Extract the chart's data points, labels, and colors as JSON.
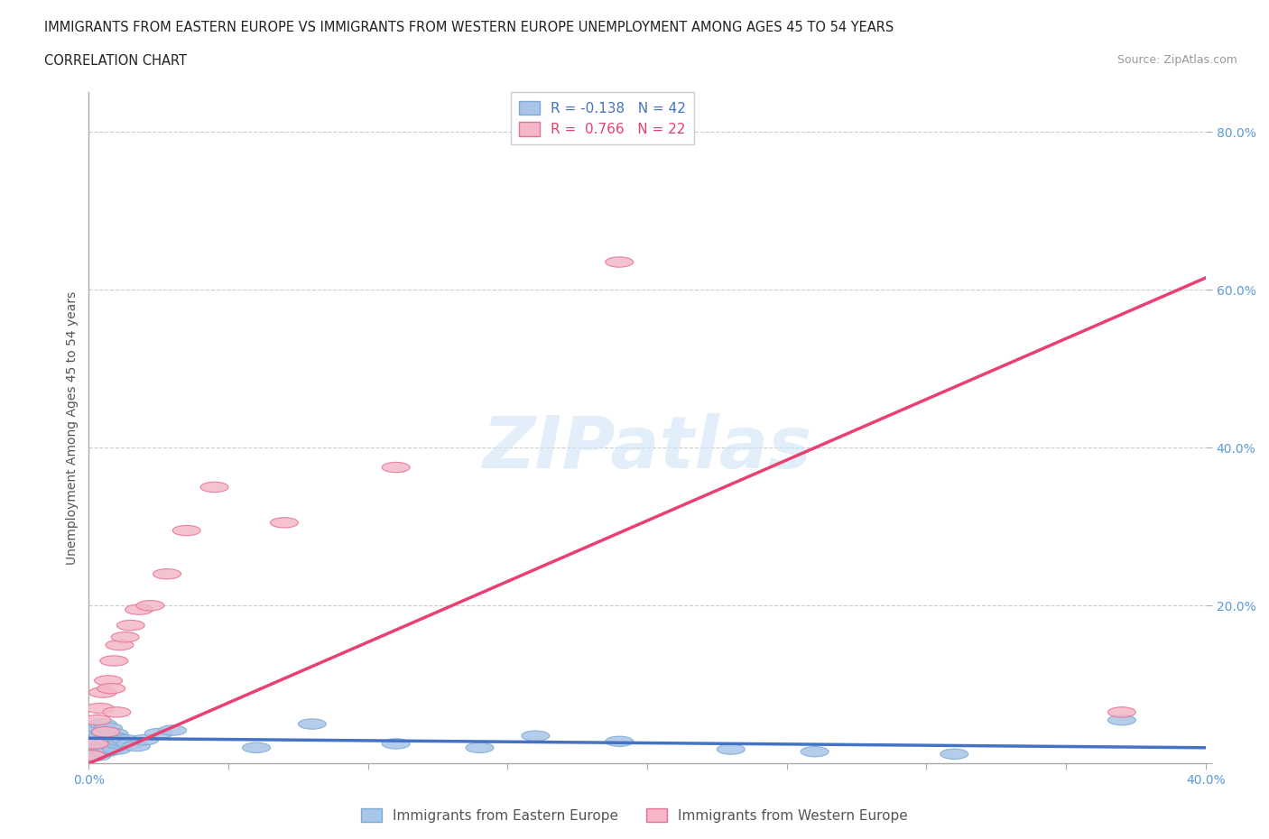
{
  "title_line1": "IMMIGRANTS FROM EASTERN EUROPE VS IMMIGRANTS FROM WESTERN EUROPE UNEMPLOYMENT AMONG AGES 45 TO 54 YEARS",
  "title_line2": "CORRELATION CHART",
  "source": "Source: ZipAtlas.com",
  "ylabel": "Unemployment Among Ages 45 to 54 years",
  "xlim": [
    0.0,
    0.4
  ],
  "ylim": [
    0.0,
    0.85
  ],
  "xticks": [
    0.0,
    0.05,
    0.1,
    0.15,
    0.2,
    0.25,
    0.3,
    0.35,
    0.4
  ],
  "ytick_positions": [
    0.0,
    0.2,
    0.4,
    0.6,
    0.8
  ],
  "grid_color": "#cccccc",
  "background_color": "#ffffff",
  "watermark": "ZIPatlas",
  "legend_R1": "-0.138",
  "legend_N1": "42",
  "legend_R2": "0.766",
  "legend_N2": "22",
  "series1_color": "#aac4e8",
  "series1_edge": "#7aaad4",
  "series2_color": "#f4b8c8",
  "series2_edge": "#e87090",
  "line1_color": "#4472c4",
  "line2_color": "#e84070",
  "legend_label1": "Immigrants from Eastern Europe",
  "legend_label2": "Immigrants from Western Europe",
  "eastern_x": [
    0.001,
    0.002,
    0.002,
    0.003,
    0.003,
    0.003,
    0.004,
    0.004,
    0.004,
    0.005,
    0.005,
    0.005,
    0.006,
    0.006,
    0.006,
    0.007,
    0.007,
    0.007,
    0.008,
    0.008,
    0.009,
    0.009,
    0.01,
    0.01,
    0.011,
    0.012,
    0.013,
    0.015,
    0.017,
    0.02,
    0.025,
    0.03,
    0.06,
    0.08,
    0.11,
    0.14,
    0.16,
    0.19,
    0.23,
    0.26,
    0.31,
    0.37
  ],
  "eastern_y": [
    0.02,
    0.015,
    0.03,
    0.01,
    0.025,
    0.04,
    0.015,
    0.03,
    0.045,
    0.02,
    0.035,
    0.05,
    0.015,
    0.025,
    0.04,
    0.02,
    0.03,
    0.045,
    0.018,
    0.035,
    0.022,
    0.038,
    0.018,
    0.032,
    0.025,
    0.028,
    0.03,
    0.025,
    0.022,
    0.03,
    0.038,
    0.042,
    0.02,
    0.05,
    0.025,
    0.02,
    0.035,
    0.028,
    0.018,
    0.015,
    0.012,
    0.055
  ],
  "western_x": [
    0.001,
    0.002,
    0.003,
    0.004,
    0.005,
    0.006,
    0.007,
    0.008,
    0.009,
    0.01,
    0.011,
    0.013,
    0.015,
    0.018,
    0.022,
    0.028,
    0.035,
    0.045,
    0.07,
    0.11,
    0.19,
    0.37
  ],
  "western_y": [
    0.01,
    0.025,
    0.055,
    0.07,
    0.09,
    0.04,
    0.105,
    0.095,
    0.13,
    0.065,
    0.15,
    0.16,
    0.175,
    0.195,
    0.2,
    0.24,
    0.295,
    0.35,
    0.305,
    0.375,
    0.635,
    0.065
  ],
  "line1_x0": 0.0,
  "line1_y0": 0.032,
  "line1_x1": 0.4,
  "line1_y1": 0.02,
  "line2_x0": 0.0,
  "line2_y0": 0.0,
  "line2_x1": 0.4,
  "line2_y1": 0.615
}
